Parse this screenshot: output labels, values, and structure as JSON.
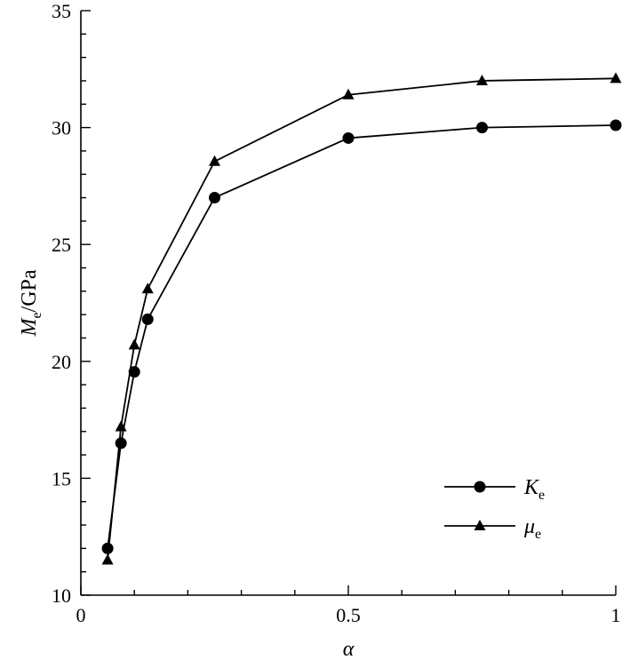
{
  "chart_data": {
    "type": "line",
    "xlabel": "α",
    "ylabel_main": "M",
    "ylabel_sub": "e",
    "ylabel_unit": "/GPa",
    "xlim": [
      0,
      1
    ],
    "ylim": [
      10,
      35
    ],
    "x_ticks": [
      0,
      0.5,
      1
    ],
    "x_tick_labels": [
      "0",
      "0.5",
      "1"
    ],
    "y_ticks": [
      10,
      15,
      20,
      25,
      30,
      35
    ],
    "y_tick_labels": [
      "10",
      "15",
      "20",
      "25",
      "30",
      "35"
    ],
    "grid": false,
    "legend_position": "lower-right",
    "series": [
      {
        "name_main": "K",
        "name_sub": "e",
        "marker": "circle",
        "x": [
          0.05,
          0.075,
          0.1,
          0.125,
          0.25,
          0.5,
          0.75,
          1.0
        ],
        "values": [
          12.0,
          16.5,
          19.55,
          21.8,
          27.0,
          29.55,
          30.0,
          30.1
        ]
      },
      {
        "name_main": "μ",
        "name_sub": "e",
        "marker": "triangle",
        "x": [
          0.05,
          0.075,
          0.1,
          0.125,
          0.25,
          0.5,
          0.75,
          1.0
        ],
        "values": [
          11.5,
          17.2,
          20.7,
          23.1,
          28.55,
          31.4,
          32.0,
          32.1
        ]
      }
    ]
  }
}
